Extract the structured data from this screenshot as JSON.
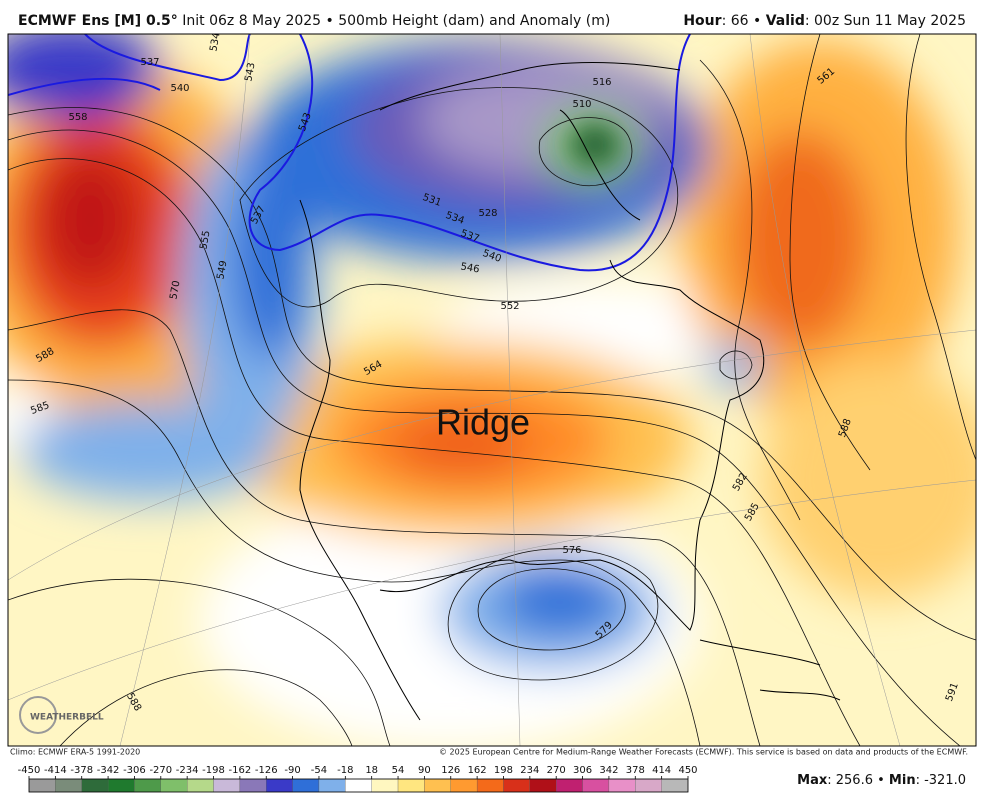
{
  "header": {
    "model": "ECMWF Ens [M] 0.5°",
    "info": " Init 06z 8 May 2025 • 500mb Height (dam) and Anomaly (m)",
    "hour_label": "Hour",
    "hour_text": ": 66 • ",
    "valid_label": "Valid",
    "valid_text": ": 00z Sun 11 May 2025"
  },
  "annotation": "Ridge",
  "logo": "WEATHERBELL",
  "contour_labels": [
    "537",
    "540",
    "534",
    "543",
    "558",
    "555",
    "549",
    "570",
    "588",
    "585",
    "537",
    "543",
    "531",
    "534",
    "537",
    "540",
    "546",
    "552",
    "528",
    "516",
    "510",
    "561",
    "588",
    "582",
    "585",
    "576",
    "579",
    "591",
    "588",
    "564"
  ],
  "footer": {
    "climo": "Climo: ECMWF ERA-5 1991-2020",
    "copyright": "© 2025 European Centre for Medium-Range Weather Forecasts (ECMWF). This service is based on data and products of the ECMWF."
  },
  "stats": {
    "max_label": "Max",
    "max_text": ": 256.6 • ",
    "min_label": "Min",
    "min_text": ": -321.0"
  },
  "colorbar": {
    "ticks": [
      -450,
      -414,
      -378,
      -342,
      -306,
      -270,
      -234,
      -198,
      -162,
      -126,
      -90,
      -54,
      -18,
      18,
      54,
      90,
      126,
      162,
      198,
      234,
      270,
      306,
      342,
      378,
      414,
      450
    ],
    "colors": [
      "#9a9a9a",
      "#7a8c7a",
      "#2e6b3a",
      "#1f7a2e",
      "#4e9a4a",
      "#7fbf6a",
      "#b5d98a",
      "#c9b9d9",
      "#8a78b8",
      "#3a3ac8",
      "#2f6fd8",
      "#7fb0ea",
      "#ffffff",
      "#fff7c0",
      "#ffe680",
      "#ffc050",
      "#ff9a30",
      "#f46a1a",
      "#d8301a",
      "#b01018",
      "#c02070",
      "#d850a0",
      "#e890c8",
      "#d8a8c8",
      "#b8b8b8"
    ]
  }
}
